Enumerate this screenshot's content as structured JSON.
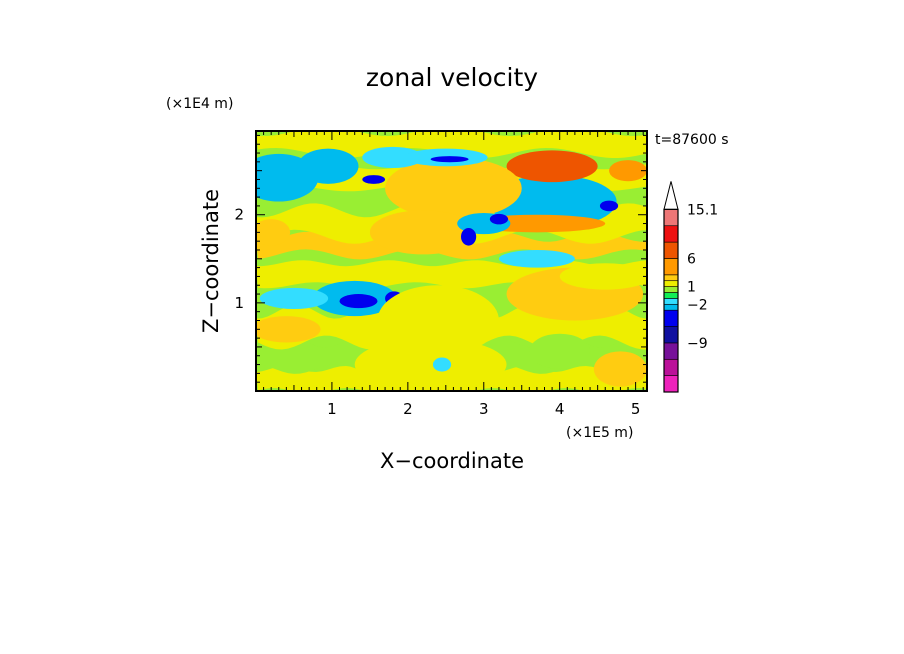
{
  "chart_data": {
    "type": "heatmap",
    "title": "zonal velocity",
    "xlabel": "X−coordinate",
    "ylabel": "Z−coordinate",
    "x_multiplier": "(×1E5 m)",
    "y_multiplier": "(×1E4 m)",
    "time_label": "t=87600 s",
    "xlim": [
      0,
      5.15
    ],
    "ylim": [
      0,
      2.95
    ],
    "x_ticks": [
      1,
      2,
      3,
      4,
      5
    ],
    "y_ticks": [
      1,
      2
    ],
    "x_tick_labels": [
      "1",
      "2",
      "3",
      "4",
      "5"
    ],
    "y_tick_labels": [
      "1",
      "2"
    ],
    "colorbar": {
      "levels": [
        -15,
        -12,
        -9,
        -6,
        -3,
        -2,
        -1,
        0,
        1,
        2,
        3,
        6,
        9,
        12,
        15.1
      ],
      "colors": [
        "#ee22bb",
        "#bb1199",
        "#771199",
        "#1010a0",
        "#0000ee",
        "#00bbee",
        "#33ddff",
        "#11ee55",
        "#99ee33",
        "#eeee00",
        "#ffcc11",
        "#ff9900",
        "#ee5500",
        "#ee1111",
        "#ee7777",
        "#ffbbbb"
      ],
      "labeled_levels": [
        "15.1",
        "6",
        "1",
        "−2",
        "−9"
      ],
      "labeled_values": [
        15.1,
        6,
        1,
        -2,
        -9
      ]
    },
    "field": {
      "background": 0,
      "bands": [
        {
          "x": [
            0,
            5.15
          ],
          "z": [
            0.0,
            0.25
          ],
          "value": 1.5
        },
        {
          "x": [
            0,
            5.15
          ],
          "z": [
            0.25,
            0.55
          ],
          "value": 0.5
        },
        {
          "x": [
            0,
            5.15
          ],
          "z": [
            0.55,
            0.9
          ],
          "value": 1.5
        },
        {
          "x": [
            0,
            5.15
          ],
          "z": [
            1.2,
            1.45
          ],
          "value": 1.5
        },
        {
          "x": [
            0,
            5.15
          ],
          "z": [
            1.55,
            1.75
          ],
          "value": 2.5
        },
        {
          "x": [
            0,
            5.15
          ],
          "z": [
            1.75,
            2.05
          ],
          "value": 1.5
        },
        {
          "x": [
            0,
            5.15
          ],
          "z": [
            2.3,
            2.55
          ],
          "value": 1.5
        },
        {
          "x": [
            0,
            5.15
          ],
          "z": [
            2.7,
            2.95
          ],
          "value": 1.5
        }
      ],
      "blobs": [
        {
          "x": 0.35,
          "z": 2.42,
          "rx": 0.35,
          "rz": 0.16,
          "value": -6
        },
        {
          "x": 0.95,
          "z": 2.55,
          "rx": 0.28,
          "rz": 0.11,
          "value": -6
        },
        {
          "x": 0.3,
          "z": 2.42,
          "rx": 0.52,
          "rz": 0.27,
          "value": -2.5
        },
        {
          "x": 0.95,
          "z": 2.55,
          "rx": 0.4,
          "rz": 0.2,
          "value": -2.5
        },
        {
          "x": 3.9,
          "z": 2.15,
          "rx": 0.35,
          "rz": 0.14,
          "value": -6
        },
        {
          "x": 3.9,
          "z": 2.15,
          "rx": 0.85,
          "rz": 0.3,
          "value": -2.5
        },
        {
          "x": 3.9,
          "z": 2.55,
          "rx": 0.6,
          "rz": 0.18,
          "value": 7
        },
        {
          "x": 4.9,
          "z": 2.5,
          "rx": 0.25,
          "rz": 0.12,
          "value": 4
        },
        {
          "x": 3.7,
          "z": 1.9,
          "rx": 0.9,
          "rz": 0.1,
          "value": 4
        },
        {
          "x": 2.6,
          "z": 2.3,
          "rx": 0.9,
          "rz": 0.35,
          "value": 2.5
        },
        {
          "x": 2.2,
          "z": 1.8,
          "rx": 0.7,
          "rz": 0.25,
          "value": 2.5
        },
        {
          "x": 1.8,
          "z": 2.65,
          "rx": 0.4,
          "rz": 0.12,
          "value": -1.5
        },
        {
          "x": 2.5,
          "z": 2.65,
          "rx": 0.55,
          "rz": 0.1,
          "value": -1.5
        },
        {
          "x": 2.55,
          "z": 2.63,
          "rx": 0.25,
          "rz": 0.035,
          "value": -6
        },
        {
          "x": 1.55,
          "z": 2.4,
          "rx": 0.15,
          "rz": 0.05,
          "value": -6
        },
        {
          "x": 3.0,
          "z": 1.9,
          "rx": 0.35,
          "rz": 0.12,
          "value": -2.5
        },
        {
          "x": 2.8,
          "z": 1.75,
          "rx": 0.1,
          "rz": 0.1,
          "value": -6
        },
        {
          "x": 3.2,
          "z": 1.95,
          "rx": 0.12,
          "rz": 0.06,
          "value": -6
        },
        {
          "x": 4.65,
          "z": 2.1,
          "rx": 0.12,
          "rz": 0.06,
          "value": -6
        },
        {
          "x": 1.3,
          "z": 1.05,
          "rx": 0.55,
          "rz": 0.2,
          "value": -2.5
        },
        {
          "x": 1.35,
          "z": 1.02,
          "rx": 0.25,
          "rz": 0.08,
          "value": -6
        },
        {
          "x": 1.82,
          "z": 1.05,
          "rx": 0.12,
          "rz": 0.08,
          "value": -6
        },
        {
          "x": 0.5,
          "z": 1.05,
          "rx": 0.45,
          "rz": 0.12,
          "value": -1.5
        },
        {
          "x": 0.2,
          "z": 1.8,
          "rx": 0.25,
          "rz": 0.15,
          "value": 2.5
        },
        {
          "x": 4.2,
          "z": 1.1,
          "rx": 0.9,
          "rz": 0.3,
          "value": 2.5
        },
        {
          "x": 4.6,
          "z": 1.3,
          "rx": 0.6,
          "rz": 0.15,
          "value": 1.5
        },
        {
          "x": 0.4,
          "z": 0.7,
          "rx": 0.45,
          "rz": 0.15,
          "value": 2.5
        },
        {
          "x": 2.4,
          "z": 0.8,
          "rx": 0.8,
          "rz": 0.4,
          "value": 1.5
        },
        {
          "x": 2.3,
          "z": 0.3,
          "rx": 1.0,
          "rz": 0.3,
          "value": 1.5
        },
        {
          "x": 2.45,
          "z": 0.3,
          "rx": 0.12,
          "rz": 0.08,
          "value": -1.5
        },
        {
          "x": 4.0,
          "z": 0.45,
          "rx": 0.4,
          "rz": 0.2,
          "value": 0.5
        },
        {
          "x": 4.8,
          "z": 0.25,
          "rx": 0.35,
          "rz": 0.2,
          "value": 2.5
        },
        {
          "x": 3.7,
          "z": 1.5,
          "rx": 0.5,
          "rz": 0.1,
          "value": -1.5
        }
      ]
    }
  }
}
